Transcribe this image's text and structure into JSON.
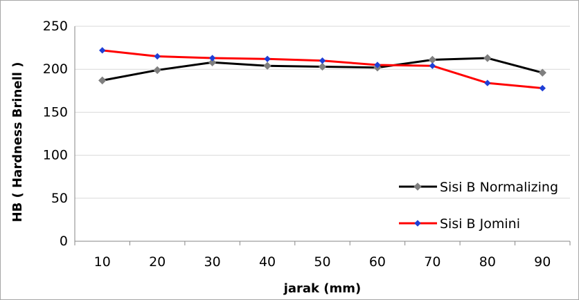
{
  "chart_data": {
    "type": "line",
    "x": [
      10,
      20,
      30,
      40,
      50,
      60,
      70,
      80,
      90
    ],
    "categories": [
      "10",
      "20",
      "30",
      "40",
      "50",
      "60",
      "70",
      "80",
      "90"
    ],
    "xlabel": "jarak (mm)",
    "ylabel": "HB ( Hardness Brinell )",
    "ylim": [
      0,
      250
    ],
    "yticks": [
      0,
      50,
      100,
      150,
      200,
      250
    ],
    "grid": true,
    "legend_position": "bottom-right",
    "series": [
      {
        "name": "Sisi B Normalizing",
        "color": "#000000",
        "marker_color": "#7f7f7f",
        "marker": "diamond",
        "values": [
          187,
          199,
          208,
          204,
          203,
          202,
          211,
          213,
          196
        ]
      },
      {
        "name": "Sisi B Jomini",
        "color": "#ff0000",
        "marker_color": "#1f3fd6",
        "marker": "diamond",
        "values": [
          222,
          215,
          213,
          212,
          210,
          205,
          204,
          184,
          178
        ]
      }
    ]
  }
}
